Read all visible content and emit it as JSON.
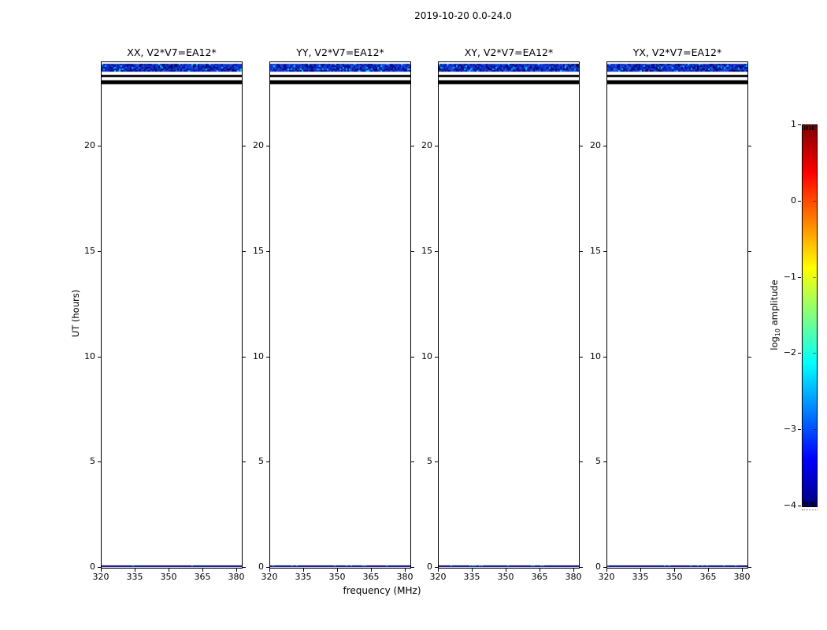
{
  "chart_data": {
    "type": "heatmap",
    "title": "2019-10-20 0.0-24.0",
    "xlabel": "frequency (MHz)",
    "ylabel": "UT (hours)",
    "x_axis": {
      "unit": "MHz",
      "range": [
        320,
        383
      ],
      "ticks": [
        320,
        335,
        350,
        365,
        380
      ],
      "tick_labels": [
        "320",
        "335",
        "350",
        "365",
        "380"
      ]
    },
    "y_axis": {
      "unit": "hours",
      "range": [
        0,
        24
      ],
      "ticks": [
        0,
        5,
        10,
        15,
        20
      ],
      "tick_labels": [
        "0",
        "5",
        "10",
        "15",
        "20"
      ]
    },
    "panels": [
      {
        "title": "XX, V2*V7=EA12*"
      },
      {
        "title": "YY, V2*V7=EA12*"
      },
      {
        "title": "XY, V2*V7=EA12*"
      },
      {
        "title": "YX, V2*V7=EA12*"
      }
    ],
    "panel_content": {
      "background": "blank white (no data for most of the day)",
      "features": [
        {
          "kind": "noise-band",
          "ut_hours": [
            23.5,
            23.9
          ],
          "log10_amplitude_range": [
            -3.5,
            -2.2
          ],
          "palette": [
            "#000d8c",
            "#1130cc",
            "#1e50e6",
            "#00ccee",
            "#000430"
          ],
          "note": "speckled blue band with cyan flecks spanning all frequencies"
        },
        {
          "kind": "solid-band",
          "ut_hours": [
            23.25,
            23.36
          ],
          "log10_amplitude": -4,
          "render_color": "#000003"
        },
        {
          "kind": "solid-band",
          "ut_hours": [
            22.92,
            23.1
          ],
          "log10_amplitude": -4,
          "render_color": "#000003"
        },
        {
          "kind": "solid-band",
          "ut_hours": [
            0.0,
            0.08
          ],
          "log10_amplitude": -4,
          "render_color": "#000080",
          "note": "thin navy line along the bottom axis with sparse cyan specks",
          "speck_color": "#00a8cc"
        }
      ]
    },
    "colorbar": {
      "label_prefix": "log",
      "label_sub": "10",
      "label_suffix": " amplitude",
      "range": [
        -4,
        1
      ],
      "ticks": [
        1,
        0,
        -1,
        -2,
        -3,
        -4
      ],
      "tick_labels": [
        "1",
        "0",
        "−1",
        "−2",
        "−3",
        "−4"
      ],
      "colormap": "jet",
      "colormap_stops_bottom_to_top": [
        "#000080",
        "#0000ff",
        "#00ffff",
        "#ffff00",
        "#ff0000",
        "#800000"
      ],
      "stop_positions_pct": [
        0,
        12.5,
        37.5,
        62.5,
        87.5,
        100
      ]
    },
    "legend_position": "right colorbar",
    "grid": false
  }
}
